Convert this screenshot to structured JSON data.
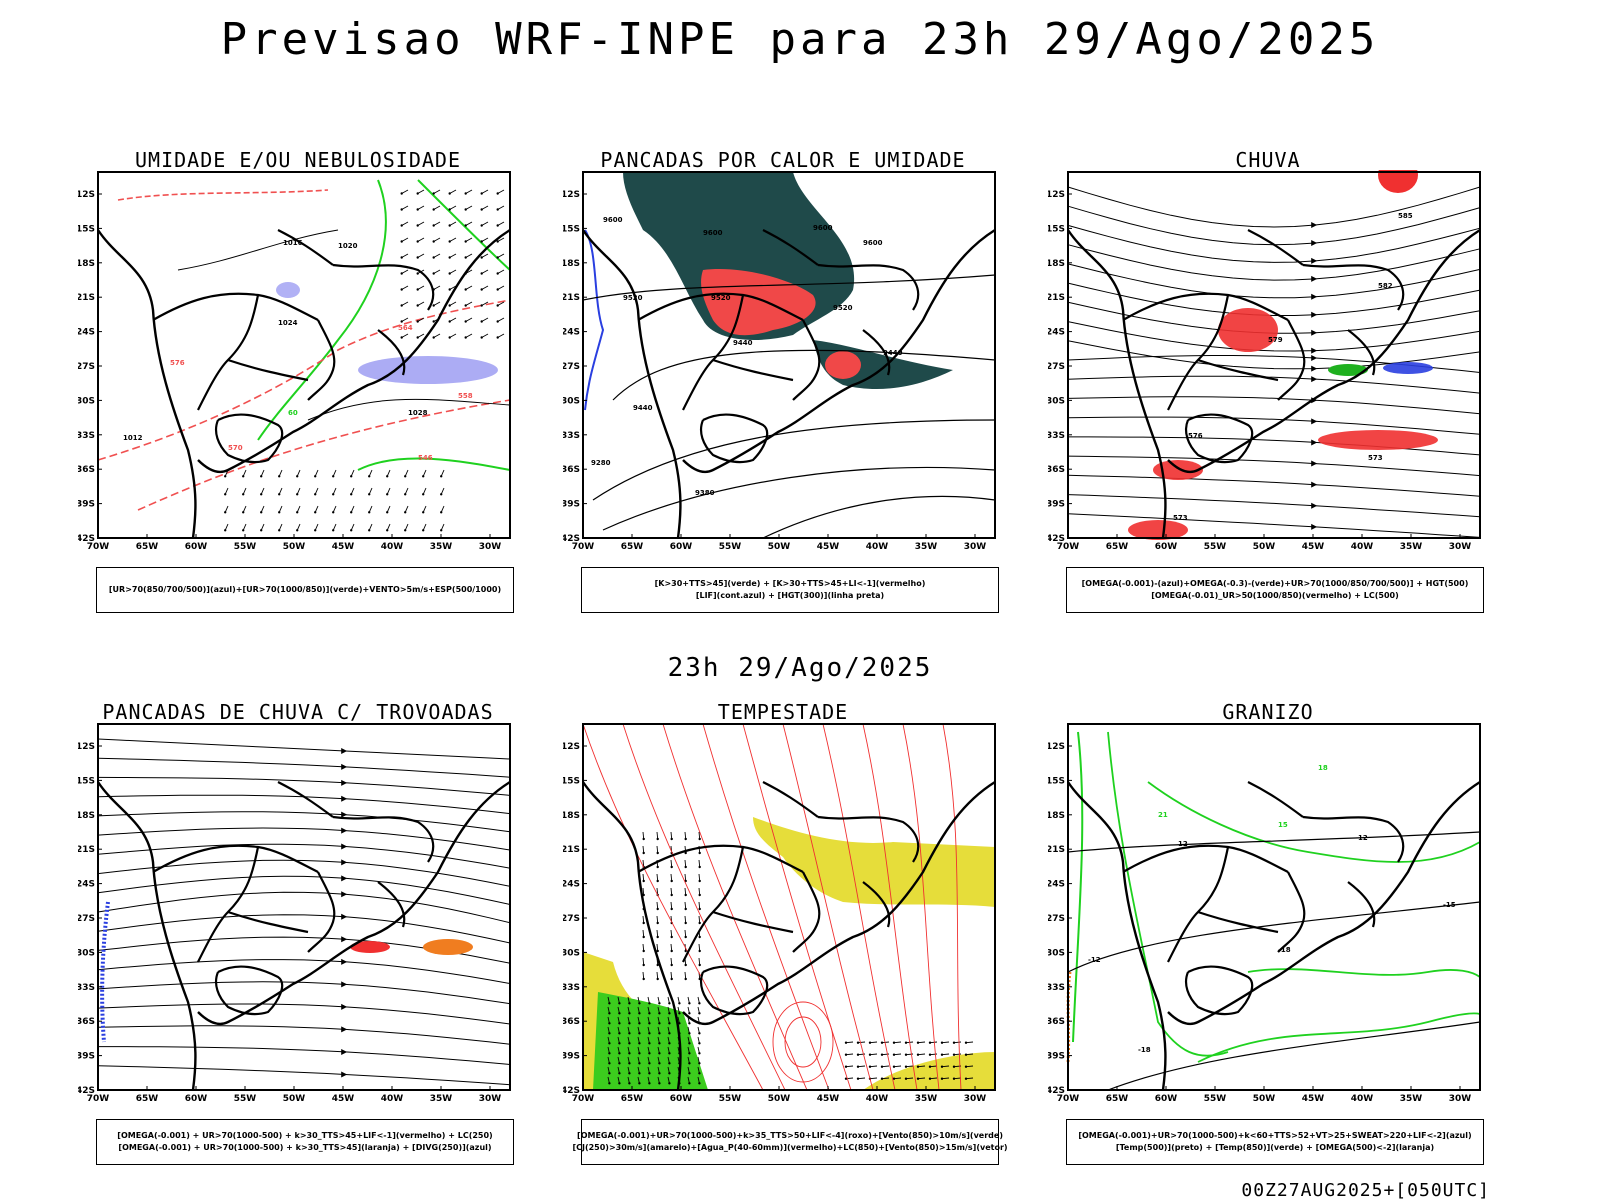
{
  "title": "Previsao WRF-INPE  para 23h 29/Ago/2025",
  "subtitle": "23h 29/Ago/2025",
  "footer": "00Z27AUG2025+[050UTC]",
  "axes": {
    "lat_ticks": [
      "12S",
      "15S",
      "18S",
      "21S",
      "24S",
      "27S",
      "30S",
      "33S",
      "36S",
      "39S",
      "42S"
    ],
    "lon_ticks": [
      "70W",
      "65W",
      "60W",
      "55W",
      "50W",
      "45W",
      "40W",
      "35W",
      "30W"
    ]
  },
  "panels": [
    {
      "title": "UMIDADE E/OU NEBULOSIDADE",
      "legend": [
        "[UR>70(850/700/500)](azul)+[UR>70(1000/850)](verde)+VENTO>5m/s+ESP(500/1000)"
      ],
      "contour_labels": [
        "1016",
        "1020",
        "1024",
        "1028",
        "1012",
        "576",
        "570",
        "564",
        "558",
        "552",
        "546",
        "60"
      ],
      "colors": {
        "blue": "#9d9df2",
        "green": "#1fd11f",
        "red": "#f05050"
      }
    },
    {
      "title": "PANCADAS POR CALOR E UMIDADE",
      "legend": [
        "[K>30+TTS>45](verde)  +  [K>30+TTS>45+LI<-1](vermelho)",
        "[LIF](cont.azul)  +  [HGT(300)](linha preta)"
      ],
      "contour_labels": [
        "9600",
        "9520",
        "9440",
        "9380",
        "9280"
      ],
      "colors": {
        "green": "#1f4a4a",
        "red": "#f04848",
        "blue": "#2a3fe0"
      }
    },
    {
      "title": "CHUVA",
      "legend": [
        "[OMEGA(-0.001)-(azul)+OMEGA(-0.3)-(verde)+UR>70(1000/850/700/500)]  +  HGT(500)",
        "[OMEGA(-0.01)_UR>50(1000/850)(vermelho)  +  LC(500)"
      ],
      "contour_labels": [
        "585",
        "582",
        "579",
        "576",
        "573"
      ],
      "colors": {
        "red": "#f03030",
        "blue": "#2a3fe0",
        "green": "#1fb01f"
      }
    },
    {
      "title": "PANCADAS DE CHUVA C/ TROVOADAS",
      "legend": [
        "[OMEGA(-0.001)  +  UR>70(1000-500)  +  k>30_TTS>45+LIF<-1](vermelho)  +  LC(250)",
        "[OMEGA(-0.001)  +  UR>70(1000-500)  +  k>30_TTS>45](laranja)  +  [DIVG(250)](azul)"
      ],
      "contour_labels": [],
      "colors": {
        "red": "#f03030",
        "orange": "#f07d20",
        "blue": "#2a3fe0"
      }
    },
    {
      "title": "TEMPESTADE",
      "legend": [
        "[OMEGA(-0.001)+UR>70(1000-500)+k>35_TTS>50+LIF<-4](roxo)+[Vento(850)>10m/s](verde)",
        "[CJ(250)>30m/s](amarelo)+[Agua_P(40-60mm)](vermelho)+LC(850)+[Vento(850)>15m/s](vetor)"
      ],
      "contour_labels": [],
      "colors": {
        "yellow": "#e6dd3a",
        "green": "#3ccc1e",
        "red": "#f03030"
      }
    },
    {
      "title": "GRANIZO",
      "legend": [
        "[OMEGA(-0.001)+UR>70(1000-500)+k<60+TTS>52+VT>25+SWEAT>220+LIF<-2](azul)",
        "[Temp(500)](preto)  +  [Temp(850)](verde)  +  [OMEGA(500)<-2](laranja)"
      ],
      "contour_labels": [
        "-12",
        "-15",
        "-18",
        "12",
        "15",
        "18",
        "21"
      ],
      "colors": {
        "green": "#1fd11f",
        "orange": "#f07d20"
      }
    }
  ]
}
